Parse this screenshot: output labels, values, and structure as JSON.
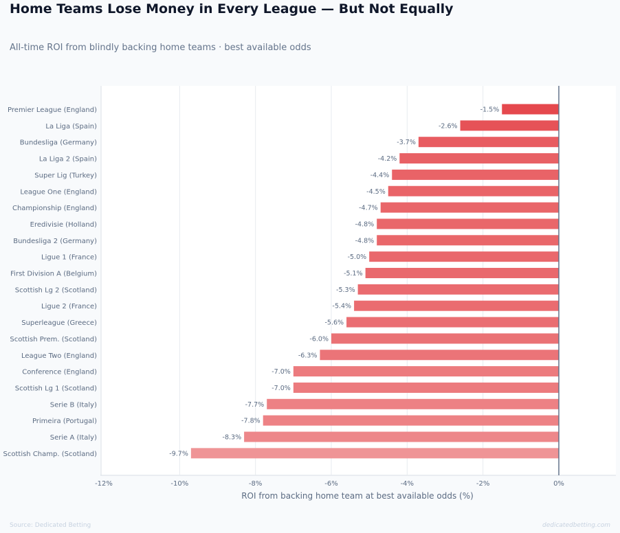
{
  "chart_data": {
    "type": "bar",
    "orientation": "horizontal",
    "title": "Home Teams Lose Money in Every League — But Not Equally",
    "subtitle": "All-time ROI from blindly backing home teams · best available odds",
    "xlabel": "ROI from backing home team at best available odds (%)",
    "ylabel": "",
    "xlim": [
      -12,
      1.5
    ],
    "xticks": [
      -12,
      -10,
      -8,
      -6,
      -4,
      -2,
      0
    ],
    "xtick_labels": [
      "-12%",
      "-10%",
      "-8%",
      "-6%",
      "-4%",
      "-2%",
      "0%"
    ],
    "grid": true,
    "categories": [
      "Premier League  (England)",
      "La Liga  (Spain)",
      "Bundesliga  (Germany)",
      "La Liga 2  (Spain)",
      "Super Lig  (Turkey)",
      "League One  (England)",
      "Championship  (England)",
      "Eredivisie  (Holland)",
      "Bundesliga 2  (Germany)",
      "Ligue 1  (France)",
      "First Division A  (Belgium)",
      "Scottish Lg 2  (Scotland)",
      "Ligue 2  (France)",
      "Superleague  (Greece)",
      "Scottish Prem.  (Scotland)",
      "League Two  (England)",
      "Conference  (England)",
      "Scottish Lg 1  (Scotland)",
      "Serie B  (Italy)",
      "Primeira  (Portugal)",
      "Serie A  (Italy)",
      "Scottish Champ.  (Scotland)"
    ],
    "values": [
      -1.5,
      -2.6,
      -3.7,
      -4.2,
      -4.4,
      -4.5,
      -4.7,
      -4.8,
      -4.8,
      -5.0,
      -5.1,
      -5.3,
      -5.4,
      -5.6,
      -6.0,
      -6.3,
      -7.0,
      -7.0,
      -7.7,
      -7.8,
      -8.3,
      -9.7
    ],
    "value_labels": [
      "-1.5%",
      "-2.6%",
      "-3.7%",
      "-4.2%",
      "-4.4%",
      "-4.5%",
      "-4.7%",
      "-4.8%",
      "-4.8%",
      "-5.0%",
      "-5.1%",
      "-5.3%",
      "-5.4%",
      "-5.6%",
      "-6.0%",
      "-6.3%",
      "-7.0%",
      "-7.0%",
      "-7.7%",
      "-7.8%",
      "-8.3%",
      "-9.7%"
    ],
    "colors": {
      "bar_strong": "#e5484d",
      "bar_light": "#ef9496",
      "zero_line": "#64748b",
      "grid": "#e7ebf0",
      "text": "#5b6b82"
    }
  },
  "footer": {
    "source": "Source: Dedicated Betting",
    "watermark": "dedicatedbetting.com"
  }
}
